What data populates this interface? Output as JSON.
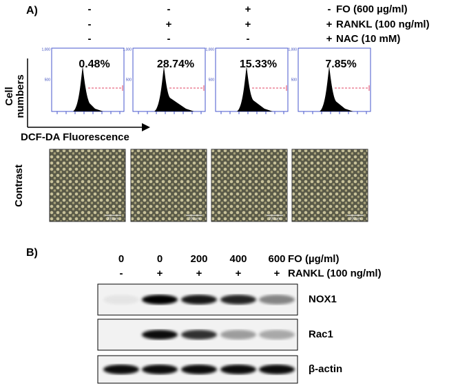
{
  "panel_a": {
    "label": "A)",
    "conditions": [
      {
        "signs": [
          "-",
          "-",
          "+",
          "-"
        ],
        "label": "FO (600 µg/ml)"
      },
      {
        "signs": [
          "-",
          "+",
          "+",
          "+"
        ],
        "label": "RANKL (100 ng/ml)"
      },
      {
        "signs": [
          "-",
          "-",
          "-",
          "+"
        ],
        "label": "NAC (10 mM)"
      }
    ],
    "percentages": [
      "0.48%",
      "28.74%",
      "15.33%",
      "7.85%"
    ],
    "histogram_axis_labels": [
      "1,000",
      "500"
    ],
    "y_axis_label": [
      "Cell",
      "numbers"
    ],
    "x_axis_label": "DCF-DA Fluorescence",
    "image_row_label": "Contrast",
    "scale_bar": "200 µm"
  },
  "panel_b": {
    "label": "B)",
    "fo_doses": [
      "0",
      "0",
      "200",
      "400",
      "600"
    ],
    "fo_label": "FO (µg/ml)",
    "rankl_signs": [
      "-",
      "+",
      "+",
      "+",
      "+"
    ],
    "rankl_label": "RANKL (100 ng/ml)",
    "blots": [
      "NOX1",
      "Rac1",
      "β-actin"
    ]
  }
}
